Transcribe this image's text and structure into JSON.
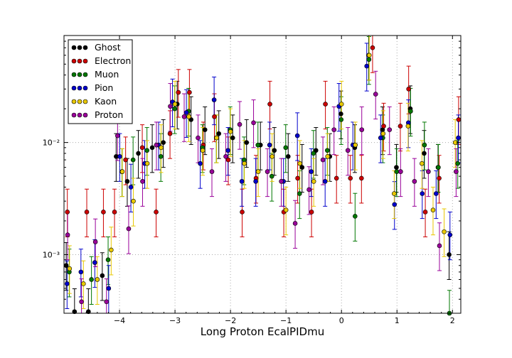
{
  "chart_data": {
    "type": "scatter",
    "title": "",
    "xlabel": "Long Proton EcalPIDmu",
    "ylabel": "",
    "xlim": [
      -5.0,
      2.15
    ],
    "ylim": [
      0.0003,
      0.09
    ],
    "yscale": "log",
    "grid": true,
    "legend_position": "top-left",
    "x_ticks": [
      -4,
      -3,
      -2,
      -1,
      0,
      1,
      2
    ],
    "x_tick_labels": [
      "−4",
      "−3",
      "−2",
      "−1",
      "0",
      "1",
      "2"
    ],
    "y_ticks": [
      0.001,
      0.01
    ],
    "y_tick_labels": [
      "10⁻³",
      "10⁻²"
    ],
    "series": [
      {
        "name": "Ghost",
        "color": "#000000",
        "points": [
          [
            -4.95,
            0.0008
          ],
          [
            -4.8,
            0.00031
          ],
          [
            -4.55,
            0.00031
          ],
          [
            -4.3,
            0.00065
          ],
          [
            -4.05,
            0.0075
          ],
          [
            -3.85,
            0.0045
          ],
          [
            -3.65,
            0.008
          ],
          [
            -3.4,
            0.009
          ],
          [
            -3.2,
            0.01
          ],
          [
            -2.95,
            0.022
          ],
          [
            -2.7,
            0.016
          ],
          [
            -2.45,
            0.013
          ],
          [
            -2.2,
            0.012
          ],
          [
            -1.95,
            0.011
          ],
          [
            -1.7,
            0.01
          ],
          [
            -1.45,
            0.0095
          ],
          [
            -1.2,
            0.0085
          ],
          [
            -0.95,
            0.0075
          ],
          [
            -0.7,
            0.006
          ],
          [
            -0.45,
            0.0085
          ],
          [
            -0.2,
            0.0075
          ],
          [
            0.0,
            0.018
          ],
          [
            0.25,
            0.009
          ],
          [
            0.5,
            0.06
          ],
          [
            0.75,
            0.013
          ],
          [
            1.0,
            0.006
          ],
          [
            1.25,
            0.02
          ],
          [
            1.5,
            0.008
          ],
          [
            1.75,
            0.006
          ],
          [
            1.95,
            0.001
          ]
        ]
      },
      {
        "name": "Electron",
        "color": "#cc0000",
        "points": [
          [
            -4.95,
            0.0024
          ],
          [
            -4.6,
            0.0024
          ],
          [
            -4.3,
            0.0024
          ],
          [
            -4.1,
            0.0024
          ],
          [
            -3.9,
            0.007
          ],
          [
            -3.6,
            0.009
          ],
          [
            -3.35,
            0.0024
          ],
          [
            -3.1,
            0.012
          ],
          [
            -2.95,
            0.028
          ],
          [
            -2.75,
            0.028
          ],
          [
            -2.5,
            0.0095
          ],
          [
            -2.3,
            0.017
          ],
          [
            -2.05,
            0.007
          ],
          [
            -1.8,
            0.0024
          ],
          [
            -1.55,
            0.0048
          ],
          [
            -1.3,
            0.022
          ],
          [
            -1.05,
            0.0024
          ],
          [
            -0.8,
            0.0048
          ],
          [
            -0.55,
            0.0024
          ],
          [
            -0.3,
            0.022
          ],
          [
            -0.1,
            0.0048
          ],
          [
            0.15,
            0.0048
          ],
          [
            0.35,
            0.0048
          ],
          [
            0.55,
            0.07
          ],
          [
            0.75,
            0.014
          ],
          [
            1.05,
            0.014
          ],
          [
            1.2,
            0.03
          ],
          [
            1.5,
            0.0024
          ],
          [
            1.75,
            0.0048
          ],
          [
            2.1,
            0.016
          ]
        ]
      },
      {
        "name": "Muon",
        "color": "#007700",
        "points": [
          [
            -4.9,
            0.0007
          ],
          [
            -4.5,
            0.0006
          ],
          [
            -4.2,
            0.0009
          ],
          [
            -3.95,
            0.0055
          ],
          [
            -3.75,
            0.007
          ],
          [
            -3.5,
            0.0085
          ],
          [
            -3.25,
            0.0075
          ],
          [
            -3.0,
            0.02
          ],
          [
            -2.75,
            0.019
          ],
          [
            -2.5,
            0.009
          ],
          [
            -2.25,
            0.011
          ],
          [
            -2.0,
            0.013
          ],
          [
            -1.75,
            0.007
          ],
          [
            -1.5,
            0.0095
          ],
          [
            -1.25,
            0.005
          ],
          [
            -1.0,
            0.009
          ],
          [
            -0.75,
            0.0035
          ],
          [
            -0.5,
            0.008
          ],
          [
            -0.25,
            0.0085
          ],
          [
            0.0,
            0.016
          ],
          [
            0.25,
            0.0022
          ],
          [
            0.5,
            0.055
          ],
          [
            0.75,
            0.011
          ],
          [
            1.0,
            0.0055
          ],
          [
            1.25,
            0.019
          ],
          [
            1.5,
            0.0095
          ],
          [
            1.75,
            0.006
          ],
          [
            1.95,
            0.0003
          ],
          [
            2.1,
            0.0065
          ]
        ]
      },
      {
        "name": "Pion",
        "color": "#0000cc",
        "points": [
          [
            -4.95,
            0.00055
          ],
          [
            -4.7,
            0.0007
          ],
          [
            -4.45,
            0.00085
          ],
          [
            -4.2,
            0.0005
          ],
          [
            -4.0,
            0.0075
          ],
          [
            -3.8,
            0.004
          ],
          [
            -3.55,
            0.0065
          ],
          [
            -3.3,
            0.0095
          ],
          [
            -3.05,
            0.023
          ],
          [
            -2.8,
            0.0185
          ],
          [
            -2.55,
            0.0065
          ],
          [
            -2.3,
            0.024
          ],
          [
            -2.05,
            0.0085
          ],
          [
            -1.8,
            0.0045
          ],
          [
            -1.55,
            0.0045
          ],
          [
            -1.3,
            0.0095
          ],
          [
            -1.05,
            0.0045
          ],
          [
            -0.8,
            0.0115
          ],
          [
            -0.55,
            0.0055
          ],
          [
            -0.3,
            0.0045
          ],
          [
            -0.05,
            0.021
          ],
          [
            0.2,
            0.0095
          ],
          [
            0.45,
            0.048
          ],
          [
            0.7,
            0.011
          ],
          [
            0.95,
            0.0028
          ],
          [
            1.2,
            0.015
          ],
          [
            1.45,
            0.0035
          ],
          [
            1.7,
            0.0035
          ],
          [
            1.95,
            0.0015
          ],
          [
            2.1,
            0.011
          ]
        ]
      },
      {
        "name": "Kaon",
        "color": "#e8c800",
        "points": [
          [
            -4.9,
            0.00075
          ],
          [
            -4.65,
            0.00055
          ],
          [
            -4.4,
            0.0006
          ],
          [
            -4.15,
            0.0011
          ],
          [
            -3.95,
            0.0055
          ],
          [
            -3.75,
            0.003
          ],
          [
            -3.5,
            0.0065
          ],
          [
            -3.25,
            0.009
          ],
          [
            -3.0,
            0.022
          ],
          [
            -2.75,
            0.017
          ],
          [
            -2.5,
            0.0085
          ],
          [
            -2.25,
            0.011
          ],
          [
            -2.0,
            0.0125
          ],
          [
            -1.75,
            0.0065
          ],
          [
            -1.5,
            0.0055
          ],
          [
            -1.25,
            0.0075
          ],
          [
            -1.0,
            0.0025
          ],
          [
            -0.75,
            0.0065
          ],
          [
            -0.5,
            0.0045
          ],
          [
            -0.25,
            0.0075
          ],
          [
            0.0,
            0.022
          ],
          [
            0.25,
            0.0095
          ],
          [
            0.5,
            0.06
          ],
          [
            0.75,
            0.012
          ],
          [
            0.95,
            0.0035
          ],
          [
            1.2,
            0.014
          ],
          [
            1.45,
            0.0065
          ],
          [
            1.65,
            0.0025
          ],
          [
            1.85,
            0.0016
          ],
          [
            2.05,
            0.01
          ]
        ]
      },
      {
        "name": "Proton",
        "color": "#990099",
        "points": [
          [
            -4.95,
            0.0015
          ],
          [
            -4.7,
            0.00038
          ],
          [
            -4.45,
            0.0013
          ],
          [
            -4.25,
            0.00038
          ],
          [
            -4.05,
            0.0115
          ],
          [
            -3.85,
            0.0017
          ],
          [
            -3.6,
            0.0045
          ],
          [
            -3.35,
            0.0095
          ],
          [
            -3.1,
            0.021
          ],
          [
            -2.85,
            0.017
          ],
          [
            -2.6,
            0.011
          ],
          [
            -2.35,
            0.0055
          ],
          [
            -2.1,
            0.0075
          ],
          [
            -1.85,
            0.0145
          ],
          [
            -1.6,
            0.015
          ],
          [
            -1.35,
            0.0055
          ],
          [
            -1.1,
            0.0045
          ],
          [
            -0.85,
            0.0019
          ],
          [
            -0.6,
            0.0038
          ],
          [
            -0.35,
            0.007
          ],
          [
            -0.15,
            0.013
          ],
          [
            0.1,
            0.0085
          ],
          [
            0.35,
            0.013
          ],
          [
            0.6,
            0.027
          ],
          [
            0.85,
            0.013
          ],
          [
            1.05,
            0.0055
          ],
          [
            1.3,
            0.0045
          ],
          [
            1.55,
            0.0055
          ],
          [
            1.75,
            0.0012
          ],
          [
            2.05,
            0.0055
          ]
        ]
      }
    ]
  }
}
